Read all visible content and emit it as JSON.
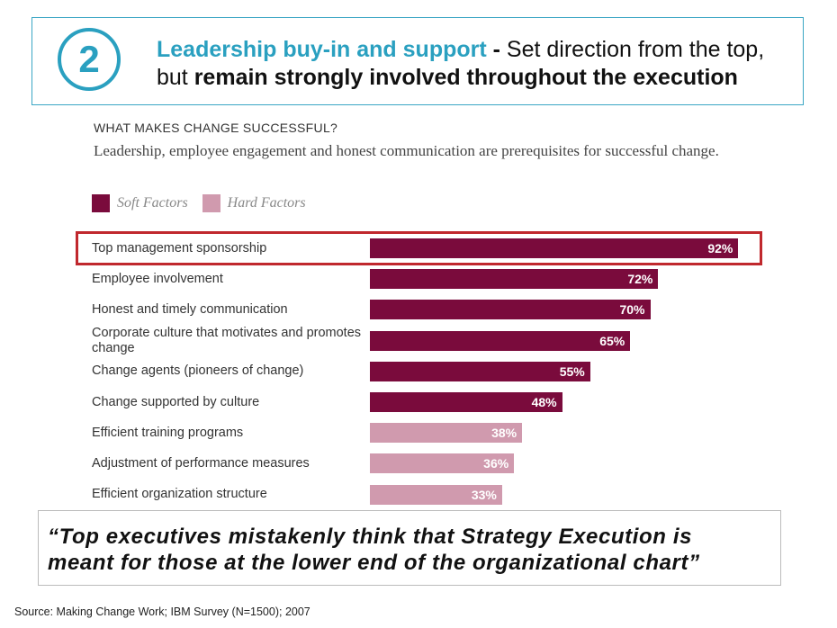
{
  "header": {
    "number": "2",
    "title_accent": "Leadership buy-in and support",
    "title_dash": " - ",
    "title_rest": "Set direction from the top,",
    "line2_plain": "but ",
    "line2_bold": "remain strongly involved throughout the execution"
  },
  "chart_data": {
    "type": "bar",
    "orientation": "horizontal",
    "title": "WHAT MAKES CHANGE SUCCESSFUL?",
    "subtitle": "Leadership, employee engagement and honest communication are prerequisites for successful change.",
    "legend": [
      {
        "name": "Soft Factors",
        "color": "#7a0b3c"
      },
      {
        "name": "Hard Factors",
        "color": "#d09aae"
      }
    ],
    "categories": [
      "Top management sponsorship",
      "Employee involvement",
      "Honest and timely communication",
      "Corporate culture that motivates and promotes change",
      "Change agents (pioneers of change)",
      "Change supported by culture",
      "Efficient training programs",
      "Adjustment of performance measures",
      "Efficient organization structure"
    ],
    "values": [
      92,
      72,
      70,
      65,
      55,
      48,
      38,
      36,
      33
    ],
    "value_labels": [
      "92%",
      "72%",
      "70%",
      "65%",
      "55%",
      "48%",
      "38%",
      "36%",
      "33%"
    ],
    "factor_type": [
      "Soft Factors",
      "Soft Factors",
      "Soft Factors",
      "Soft Factors",
      "Soft Factors",
      "Soft Factors",
      "Hard Factors",
      "Hard Factors",
      "Hard Factors"
    ],
    "xlim": [
      0,
      100
    ],
    "highlighted_category": "Top management sponsorship"
  },
  "quote": {
    "line1": "“Top executives mistakenly think that Strategy Execution is",
    "line2": "meant for those at the lower end of the organizational chart”"
  },
  "source": "Source: Making Change Work; IBM Survey (N=1500); 2007"
}
